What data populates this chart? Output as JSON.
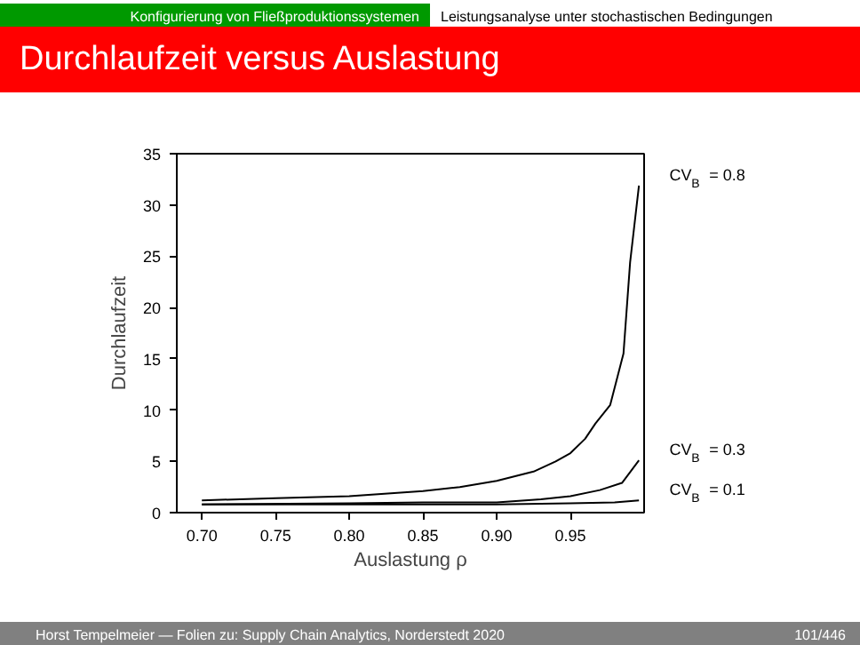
{
  "chart_data": {
    "type": "line",
    "title": "Durchlaufzeit versus Auslastung",
    "xlabel": "Auslastung ρ",
    "ylabel": "Durchlaufzeit",
    "annotations": [
      "Konfigurierung von Fließproduktionssystemen",
      "Leistungsanalyse unter stochastischen Bedingungen",
      "Horst Tempelmeier — Folien zu: Supply Chain Analytics, Norderstedt 2020",
      "101/446"
    ],
    "xlim": [
      0.683,
      1.0
    ],
    "xticks": [
      {
        "value": 0.7,
        "label": "0.70"
      },
      {
        "value": 0.75,
        "label": "0.75"
      },
      {
        "value": 0.8,
        "label": "0.80"
      },
      {
        "value": 0.85,
        "label": "0.85"
      },
      {
        "value": 0.9,
        "label": "0.90"
      },
      {
        "value": 0.95,
        "label": "0.95"
      }
    ],
    "ylim": [
      0,
      35
    ],
    "yticks": [
      0,
      5,
      10,
      15,
      20,
      25,
      30,
      35
    ],
    "grid": false,
    "marker": "none",
    "line_style": "solid",
    "series": [
      {
        "name": "CV$_{B}$ = 0.8",
        "color": "#000000",
        "x": [
          0.7,
          0.75,
          0.8,
          0.85,
          0.875,
          0.9,
          0.925,
          0.94,
          0.95,
          0.96,
          0.967,
          0.977,
          0.986,
          0.9905,
          0.9965
        ],
        "values": [
          1.2,
          1.4,
          1.6,
          2.1,
          2.5,
          3.1,
          4.0,
          5.0,
          5.8,
          7.2,
          8.7,
          10.5,
          15.5,
          24.4,
          31.9
        ]
      },
      {
        "name": "CV$_{B}$ = 0.3",
        "color": "#000000",
        "x": [
          0.7,
          0.8,
          0.85,
          0.9,
          0.93,
          0.95,
          0.97,
          0.985,
          0.9965
        ],
        "values": [
          0.8,
          0.9,
          1.0,
          1.0,
          1.3,
          1.6,
          2.2,
          2.9,
          5.1
        ]
      },
      {
        "name": "CV$_{B}$ = 0.1",
        "color": "#000000",
        "x": [
          0.7,
          0.9,
          0.95,
          0.98,
          0.9965
        ],
        "values": [
          0.8,
          0.8,
          0.9,
          1.0,
          1.2
        ]
      }
    ]
  }
}
